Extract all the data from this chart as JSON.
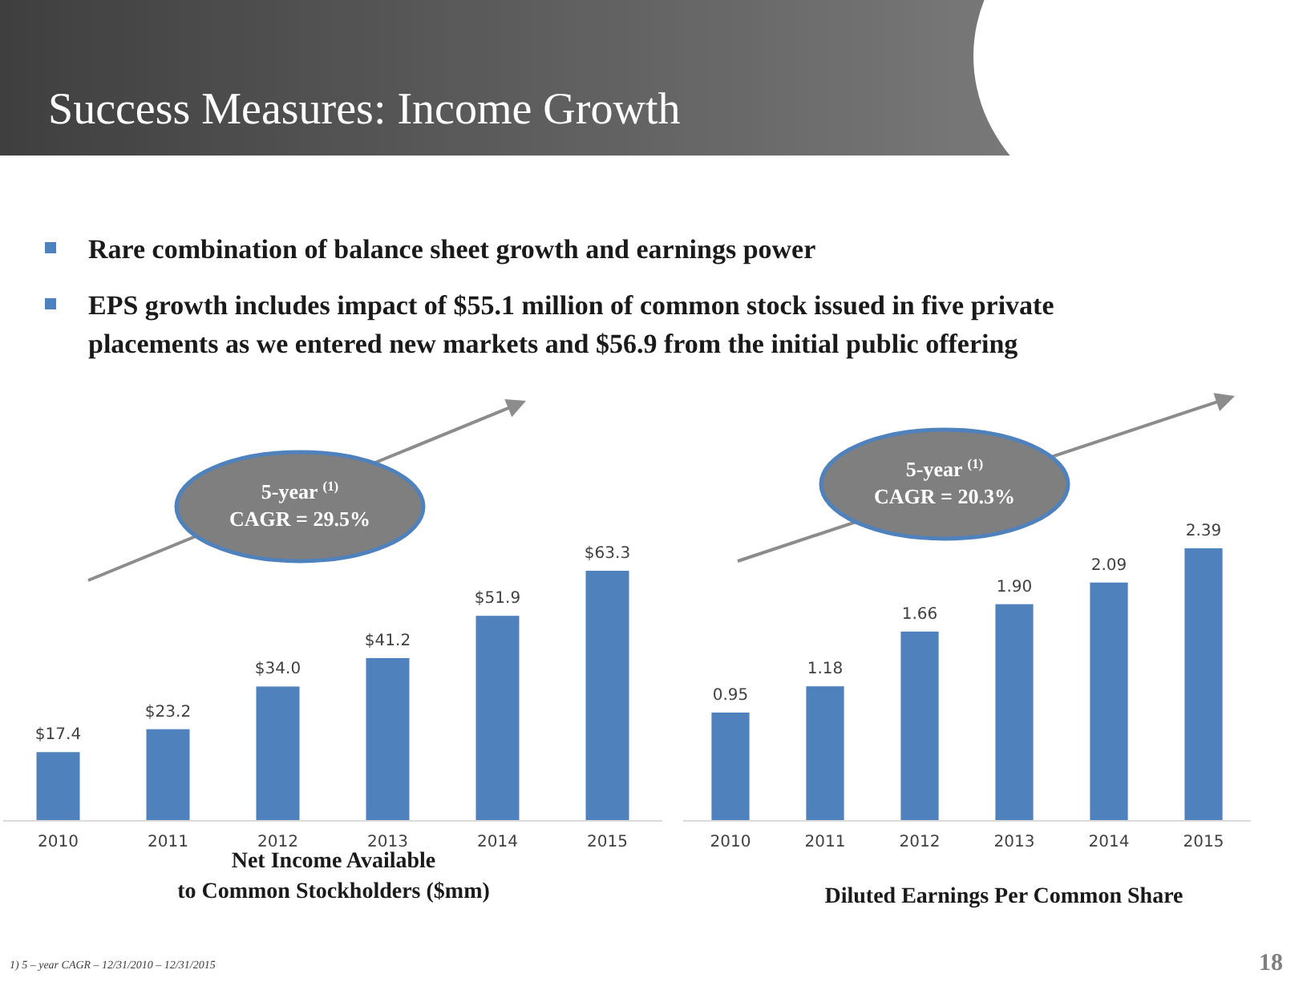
{
  "chart_data": [
    {
      "type": "bar",
      "title": "Success Measures:  Income Growth",
      "xlabel": "Net Income Available\nto Common  Stockholders ($mm)",
      "categories": [
        "2010",
        "2011",
        "2012",
        "2013",
        "2014",
        "2015"
      ],
      "values": [
        17.4,
        23.2,
        34.0,
        41.2,
        51.9,
        63.3
      ],
      "value_labels": [
        "$17.4",
        "$23.2",
        "$34.0",
        "$41.2",
        "$51.9",
        "$63.3"
      ],
      "color": "#4f81bd",
      "annotations": [
        "Rare combination of balance sheet growth and earnings power",
        "EPS growth includes impact of $55.1 million  of common stock issued in  five private\nplacements as we entered new markets and $56.9 from the initial  public  offering",
        "5-year $^{(1)}$\nCAGR = 29.5%"
      ]
    },
    {
      "type": "bar",
      "xlabel": "Diluted Earnings  Per Common  Share",
      "categories": [
        "2010",
        "2011",
        "2012",
        "2013",
        "2014",
        "2015"
      ],
      "values": [
        0.95,
        1.18,
        1.66,
        1.9,
        2.09,
        2.39
      ],
      "value_labels": [
        "0.95",
        "1.18",
        "1.66",
        "1.90",
        "2.09",
        "2.39"
      ],
      "color": "#4f81bd",
      "annotations": [
        "5-year $^{(1)}$\nCAGR = 20.3%",
        "1)     5 – year CAGR – 12/31/2010 – 12/31/2015",
        "18"
      ]
    }
  ]
}
